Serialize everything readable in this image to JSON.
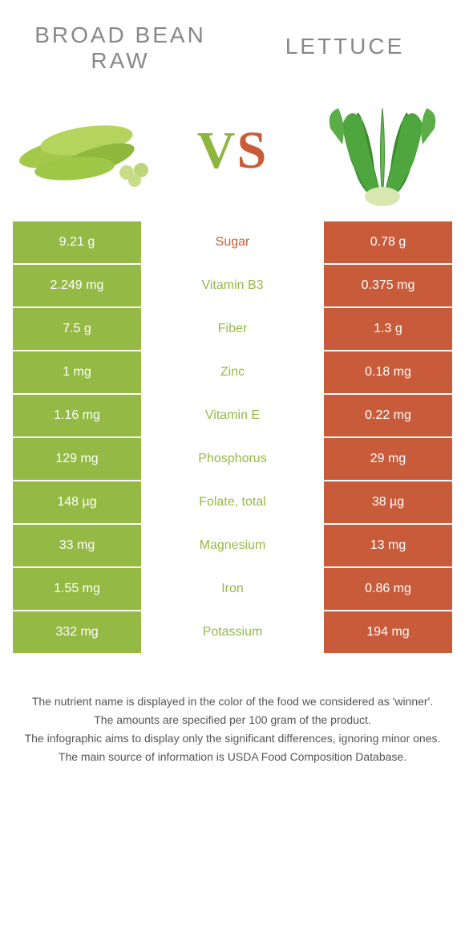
{
  "header": {
    "left_title_line1": "BROAD BEAN",
    "left_title_line2": "RAW",
    "right_title": "LETTUCE",
    "vs_v": "V",
    "vs_s": "S"
  },
  "colors": {
    "left_bg": "#95b945",
    "right_bg": "#c85c3a",
    "mid_text_green": "#95b945",
    "mid_text_orange": "#c85c3a",
    "title_gray": "#888888"
  },
  "table": {
    "rows": [
      {
        "left": "9.21 g",
        "label": "Sugar",
        "right": "0.78 g",
        "winner": "orange"
      },
      {
        "left": "2.249 mg",
        "label": "Vitamin B3",
        "right": "0.375 mg",
        "winner": "green"
      },
      {
        "left": "7.5 g",
        "label": "Fiber",
        "right": "1.3 g",
        "winner": "green"
      },
      {
        "left": "1 mg",
        "label": "Zinc",
        "right": "0.18 mg",
        "winner": "green"
      },
      {
        "left": "1.16 mg",
        "label": "Vitamin E",
        "right": "0.22 mg",
        "winner": "green"
      },
      {
        "left": "129 mg",
        "label": "Phosphorus",
        "right": "29 mg",
        "winner": "green"
      },
      {
        "left": "148 µg",
        "label": "Folate, total",
        "right": "38 µg",
        "winner": "green"
      },
      {
        "left": "33 mg",
        "label": "Magnesium",
        "right": "13 mg",
        "winner": "green"
      },
      {
        "left": "1.55 mg",
        "label": "Iron",
        "right": "0.86 mg",
        "winner": "green"
      },
      {
        "left": "332 mg",
        "label": "Potassium",
        "right": "194 mg",
        "winner": "green"
      }
    ]
  },
  "footer": {
    "line1": "The nutrient name is displayed in the color of the food we considered as 'winner'.",
    "line2": "The amounts are specified per 100 gram of the product.",
    "line3": "The infographic aims to display only the significant differences, ignoring minor ones.",
    "line4": "The main source of information is USDA Food Composition Database."
  }
}
